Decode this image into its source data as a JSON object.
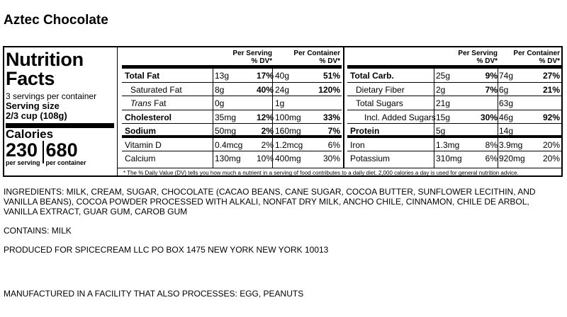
{
  "product_title": "Aztec Chocolate",
  "label": {
    "heading": "Nutrition Facts",
    "servings_per_container": "3 servings per container",
    "serving_size_label": "Serving size",
    "serving_size_value": "2/3 cup (108g)",
    "calories_label": "Calories",
    "calories_per_serving": "230",
    "calories_per_serving_label": "per serving",
    "calories_per_container": "680",
    "calories_per_container_label": "per container",
    "col_headers": {
      "per_serving": "Per Serving",
      "per_container": "Per Container",
      "dv": "% DV*"
    },
    "left_rows": [
      {
        "name": "Total Fat",
        "amt_s": "13g",
        "dv_s": "17%",
        "amt_c": "40g",
        "dv_c": "51%"
      },
      {
        "name": "Saturated Fat",
        "amt_s": "8g",
        "dv_s": "40%",
        "amt_c": "24g",
        "dv_c": "120%"
      },
      {
        "name": "Trans",
        "name_suffix": " Fat",
        "amt_s": "0g",
        "dv_s": "",
        "amt_c": "1g",
        "dv_c": ""
      },
      {
        "name": "Cholesterol",
        "amt_s": "35mg",
        "dv_s": "12%",
        "amt_c": "100mg",
        "dv_c": "33%"
      },
      {
        "name": "Sodium",
        "amt_s": "50mg",
        "dv_s": "2%",
        "amt_c": "160mg",
        "dv_c": "7%"
      },
      {
        "name": "Vitamin D",
        "amt_s": "0.4mcg",
        "dv_s": "2%",
        "amt_c": "1.2mcg",
        "dv_c": "6%"
      },
      {
        "name": "Calcium",
        "amt_s": "130mg",
        "dv_s": "10%",
        "amt_c": "400mg",
        "dv_c": "30%"
      }
    ],
    "right_rows": [
      {
        "name": "Total Carb.",
        "amt_s": "25g",
        "dv_s": "9%",
        "amt_c": "74g",
        "dv_c": "27%"
      },
      {
        "name": "Dietary Fiber",
        "amt_s": "2g",
        "dv_s": "7%",
        "amt_c": "6g",
        "dv_c": "21%"
      },
      {
        "name": "Total Sugars",
        "amt_s": "21g",
        "dv_s": "",
        "amt_c": "63g",
        "dv_c": ""
      },
      {
        "name": "Incl. Added Sugars",
        "amt_s": "15g",
        "dv_s": "30%",
        "amt_c": "46g",
        "dv_c": "92%"
      },
      {
        "name": "Protein",
        "amt_s": "5g",
        "dv_s": "",
        "amt_c": "14g",
        "dv_c": ""
      },
      {
        "name": "Iron",
        "amt_s": "1.3mg",
        "dv_s": "8%",
        "amt_c": "3.9mg",
        "dv_c": "20%"
      },
      {
        "name": "Potassium",
        "amt_s": "310mg",
        "dv_s": "6%",
        "amt_c": "920mg",
        "dv_c": "20%"
      }
    ],
    "footnote": "* The % Daily Value (DV) tells you how much a nutrient in a serving of food contributes to a daily diet. 2,000 calories a day is used for general nutrition advice."
  },
  "ingredients": "INGREDIENTS: MILK, CREAM, SUGAR, CHOCOLATE (CACAO BEANS, CANE SUGAR, COCOA BUTTER, SUNFLOWER LECITHIN, AND VANILLA BEANS), COCOA POWDER PROCESSED WITH ALKALI, NONFAT DRY MILK, ANCHO CHILE, CINNAMON, CHILE DE ARBOL, VANILLA EXTRACT, GUAR GUM, CAROB GUM",
  "contains": "CONTAINS: MILK",
  "produced_for": "PRODUCED FOR SPICECREAM LLC PO BOX 1475 NEW YORK NEW YORK 10013",
  "facility": "MANUFACTURED IN A FACILITY THAT ALSO PROCESSES: EGG, PEANUTS"
}
